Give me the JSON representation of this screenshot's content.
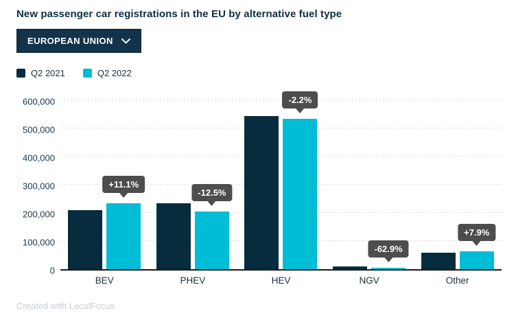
{
  "title": "New passenger car registrations in the EU by alternative fuel type",
  "dropdown": {
    "label": "EUROPEAN UNION"
  },
  "footer": {
    "attribution": "Created with LocalFocus"
  },
  "colors": {
    "accent_dark": "#072c3e",
    "accent_cyan": "#00bdd6",
    "dropdown_bg": "#12334a",
    "tooltip_bg": "#4d4d4d",
    "grid": "#e2e2e2",
    "axis": "#1a1a1a",
    "text": "#14303f"
  },
  "chart_data": {
    "type": "bar",
    "title": "New passenger car registrations in the EU by alternative fuel type",
    "categories": [
      "BEV",
      "PHEV",
      "HEV",
      "NGV",
      "Other"
    ],
    "series": [
      {
        "name": "Q2 2021",
        "color": "#072c3e",
        "values": [
          210000,
          233000,
          545000,
          10500,
          59000
        ]
      },
      {
        "name": "Q2 2022",
        "color": "#00bdd6",
        "values": [
          233300,
          204000,
          533000,
          3900,
          63700
        ]
      }
    ],
    "change_labels": [
      "+11.1%",
      "-12.5%",
      "-2.2%",
      "-62.9%",
      "+7.9%"
    ],
    "ylim": [
      0,
      600000
    ],
    "yticks": [
      0,
      100000,
      200000,
      300000,
      400000,
      500000,
      600000
    ],
    "ytick_labels": [
      "0",
      "100,000",
      "200,000",
      "300,000",
      "400,000",
      "500,000",
      "600,000"
    ],
    "grid": "horizontal-dashed",
    "legend_position": "top-left"
  }
}
